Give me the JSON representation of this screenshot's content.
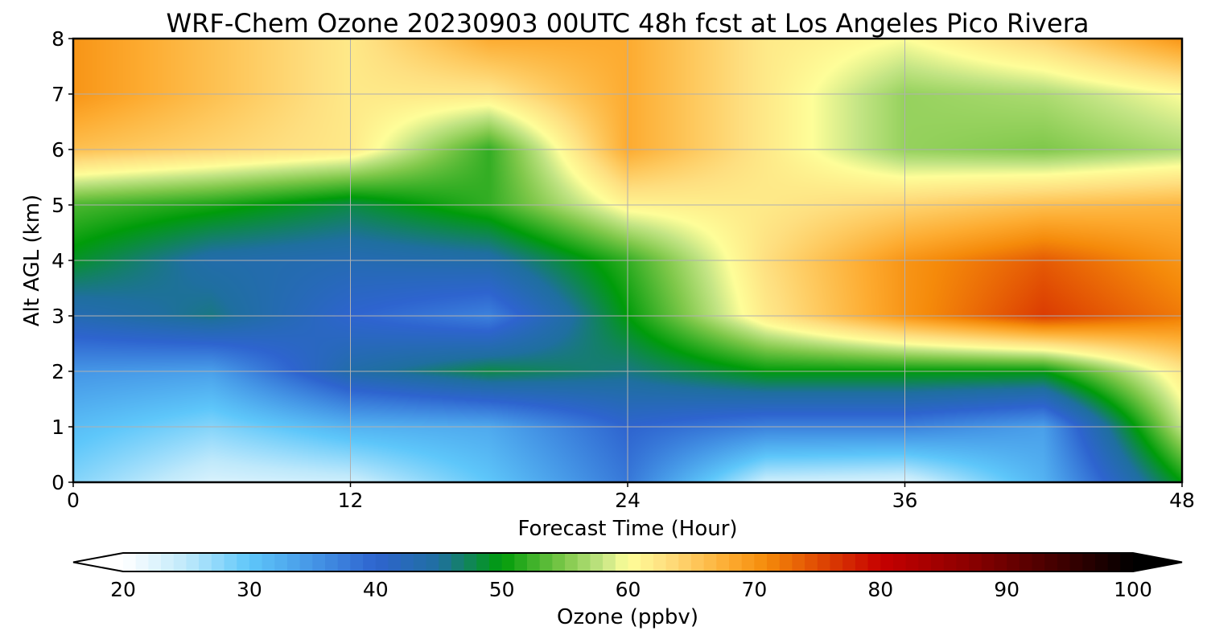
{
  "chart_data": {
    "type": "heatmap",
    "title": "WRF-Chem Ozone  20230903 00UTC 48h fcst at Los Angeles Pico Rivera",
    "xlabel": "Forecast Time (Hour)",
    "ylabel": "Alt AGL (km)",
    "xlim": [
      0,
      48
    ],
    "ylim": [
      0,
      8
    ],
    "x_ticks": [
      "0",
      "12",
      "24",
      "36",
      "48"
    ],
    "y_ticks": [
      "0",
      "1",
      "2",
      "3",
      "4",
      "5",
      "6",
      "7",
      "8"
    ],
    "grid": true,
    "x": [
      0,
      6,
      12,
      18,
      24,
      30,
      36,
      42,
      48
    ],
    "y": [
      0,
      1,
      2,
      3,
      4,
      5,
      6,
      7,
      8
    ],
    "z": [
      [
        28,
        23,
        24,
        30,
        38,
        24,
        23,
        32,
        50
      ],
      [
        31,
        28,
        32,
        33,
        40,
        37,
        37,
        34,
        58
      ],
      [
        35,
        34,
        44,
        48,
        46,
        50,
        50,
        50,
        62
      ],
      [
        43,
        46,
        40,
        37,
        50,
        62,
        70,
        76,
        72
      ],
      [
        49,
        44,
        43,
        44,
        52,
        63,
        70,
        74,
        70
      ],
      [
        53,
        51,
        48,
        52,
        61,
        62,
        64,
        66,
        67
      ],
      [
        66,
        64,
        62,
        52,
        68,
        62,
        56,
        55,
        57
      ],
      [
        70,
        66,
        62,
        62,
        68,
        62,
        56,
        57,
        60
      ],
      [
        70,
        66,
        62,
        68,
        68,
        62,
        60,
        64,
        70
      ]
    ],
    "colorbar": {
      "label": "Ozone  (ppbv)",
      "ticks": [
        "20",
        "30",
        "40",
        "50",
        "60",
        "70",
        "80",
        "90",
        "100"
      ],
      "min": 20,
      "max": 100,
      "extend": "both",
      "stops": [
        {
          "value": 20,
          "color": "#ffffff"
        },
        {
          "value": 25,
          "color": "#bfe9fb"
        },
        {
          "value": 30,
          "color": "#5ec7fa"
        },
        {
          "value": 35,
          "color": "#4596e6"
        },
        {
          "value": 40,
          "color": "#2e64cf"
        },
        {
          "value": 45,
          "color": "#1f6fa0"
        },
        {
          "value": 50,
          "color": "#009c0a"
        },
        {
          "value": 55,
          "color": "#7fc84a"
        },
        {
          "value": 58,
          "color": "#c4e585"
        },
        {
          "value": 60,
          "color": "#fefe99"
        },
        {
          "value": 63,
          "color": "#fedf80"
        },
        {
          "value": 68,
          "color": "#fdab30"
        },
        {
          "value": 71,
          "color": "#f58a0a"
        },
        {
          "value": 75,
          "color": "#e04b03"
        },
        {
          "value": 80,
          "color": "#c60000"
        },
        {
          "value": 87,
          "color": "#8c0000"
        },
        {
          "value": 94,
          "color": "#420000"
        },
        {
          "value": 100,
          "color": "#000000"
        }
      ]
    }
  }
}
